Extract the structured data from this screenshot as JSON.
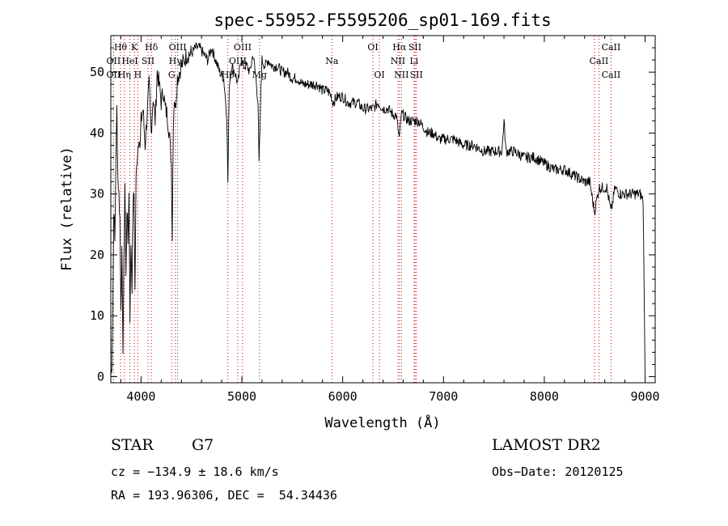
{
  "chart_data": {
    "type": "line",
    "title": "spec-55952-F5595206_sp01-169.fits",
    "xlabel": "Wavelength (Å)",
    "ylabel": "Flux (relative)",
    "xlim": [
      3700,
      9100
    ],
    "ylim": [
      -1,
      56
    ],
    "xticks": [
      4000,
      5000,
      6000,
      7000,
      8000,
      9000
    ],
    "yticks": [
      0,
      10,
      20,
      30,
      40,
      50
    ],
    "grid": false,
    "legend": "none",
    "line_color": "#000000",
    "marker_color": "#cc0000",
    "series": [
      {
        "x": [
          3700,
          3710,
          3720,
          3730,
          3740,
          3750,
          3760,
          3770,
          3780,
          3790,
          3800,
          3810,
          3820,
          3830,
          3840,
          3850,
          3860,
          3870,
          3880,
          3890,
          3900,
          3910,
          3920,
          3930,
          3940,
          3950,
          3960,
          3970,
          3980,
          3990,
          4000,
          4020,
          4040,
          4060,
          4080,
          4100,
          4120,
          4140,
          4160,
          4180,
          4200,
          4220,
          4240,
          4260,
          4280,
          4300,
          4310,
          4320,
          4330,
          4340,
          4360,
          4380,
          4400,
          4430,
          4460,
          4500,
          4540,
          4580,
          4620,
          4660,
          4700,
          4740,
          4780,
          4820,
          4850,
          4861,
          4875,
          4900,
          4930,
          4960,
          4990,
          5020,
          5050,
          5080,
          5110,
          5140,
          5160,
          5170,
          5175,
          5183,
          5190,
          5200,
          5230,
          5260,
          5300,
          5350,
          5400,
          5450,
          5500,
          5550,
          5600,
          5650,
          5700,
          5750,
          5800,
          5850,
          5890,
          5900,
          5950,
          6000,
          6050,
          6100,
          6150,
          6200,
          6250,
          6300,
          6350,
          6400,
          6450,
          6500,
          6530,
          6563,
          6580,
          6600,
          6650,
          6700,
          6750,
          6800,
          6850,
          6900,
          6950,
          7000,
          7100,
          7200,
          7300,
          7400,
          7500,
          7580,
          7600,
          7620,
          7700,
          7800,
          7900,
          8000,
          8100,
          8200,
          8300,
          8400,
          8450,
          8498,
          8542,
          8580,
          8620,
          8662,
          8700,
          8750,
          8800,
          8850,
          8900,
          8950,
          8980,
          9000
        ],
        "values": [
          0,
          2,
          12,
          28,
          22,
          35,
          44,
          33,
          30,
          26,
          12,
          20,
          5,
          18,
          32,
          16,
          28,
          22,
          30,
          10,
          22,
          15,
          28,
          30,
          14,
          32,
          36,
          38,
          40,
          37,
          42,
          44,
          38,
          43,
          48,
          40,
          46,
          42,
          50,
          48,
          45,
          47,
          44,
          43,
          40,
          35,
          23,
          42,
          46,
          44,
          49,
          50,
          51,
          52,
          53,
          53,
          54,
          54,
          53,
          52,
          54,
          52,
          50,
          49,
          43,
          32,
          48,
          51,
          50,
          48,
          52,
          51,
          51,
          50,
          53,
          49,
          45,
          35,
          38,
          42,
          48,
          52,
          51,
          52,
          51,
          51,
          50,
          50,
          49,
          49,
          48,
          48,
          48,
          48,
          47,
          47,
          46,
          45,
          46,
          46,
          45,
          45,
          45,
          44,
          44,
          44,
          45,
          44,
          44,
          43,
          43,
          39,
          43,
          43,
          42,
          42,
          42,
          41,
          40,
          40,
          39,
          39,
          39,
          38,
          38,
          37,
          37,
          37,
          42,
          37,
          37,
          36,
          36,
          35,
          34,
          34,
          33,
          32,
          32,
          27,
          31,
          31,
          31,
          27,
          31,
          30,
          30,
          30,
          30,
          30,
          29,
          0
        ]
      }
    ],
    "line_labels": [
      {
        "name": "Hθ",
        "x": 3797,
        "row": 1
      },
      {
        "name": "K",
        "x": 3934,
        "row": 1
      },
      {
        "name": "Hδ",
        "x": 4102,
        "row": 1
      },
      {
        "name": "OIII",
        "x": 4363,
        "row": 1
      },
      {
        "name": "OIII",
        "x": 5007,
        "row": 1
      },
      {
        "name": "OI",
        "x": 6300,
        "row": 1
      },
      {
        "name": "Hα",
        "x": 6563,
        "row": 1
      },
      {
        "name": "SII",
        "x": 6717,
        "row": 1
      },
      {
        "name": "CaII",
        "x": 8662,
        "row": 1
      },
      {
        "name": "OII",
        "x": 3727,
        "row": 2
      },
      {
        "name": "HeI",
        "x": 3889,
        "row": 2
      },
      {
        "name": "SII",
        "x": 4069,
        "row": 2
      },
      {
        "name": "Hγ",
        "x": 4340,
        "row": 2
      },
      {
        "name": "OIII",
        "x": 4959,
        "row": 2
      },
      {
        "name": "Na",
        "x": 5893,
        "row": 2
      },
      {
        "name": "NII",
        "x": 6548,
        "row": 2
      },
      {
        "name": "Li",
        "x": 6708,
        "row": 2
      },
      {
        "name": "CaII",
        "x": 8542,
        "row": 2
      },
      {
        "name": "OII",
        "x": 3727,
        "row": 3
      },
      {
        "name": "Hη",
        "x": 3835,
        "row": 3
      },
      {
        "name": "H",
        "x": 3968,
        "row": 3
      },
      {
        "name": "G",
        "x": 4304,
        "row": 3
      },
      {
        "name": "Hβ",
        "x": 4861,
        "row": 3
      },
      {
        "name": "Mg",
        "x": 5175,
        "row": 3
      },
      {
        "name": "OI",
        "x": 6364,
        "row": 3
      },
      {
        "name": "NII",
        "x": 6583,
        "row": 3
      },
      {
        "name": "SII",
        "x": 6731,
        "row": 3
      },
      {
        "name": "CaII",
        "x": 8662,
        "row": 3
      }
    ],
    "marker_lines": [
      3727,
      3797,
      3835,
      3889,
      3934,
      3968,
      4069,
      4102,
      4304,
      4340,
      4363,
      4861,
      4959,
      5007,
      5175,
      5893,
      6300,
      6364,
      6548,
      6563,
      6583,
      6708,
      6717,
      6731,
      8498,
      8542,
      8662
    ]
  },
  "info": {
    "object_class": "STAR",
    "subclass": "G7",
    "survey": "LAMOST DR2",
    "cz": "cz = −134.9 ± 18.6 km/s",
    "obs_date": "Obs−Date: 20120125",
    "coords": "RA = 193.96306, DEC =  54.34436"
  }
}
